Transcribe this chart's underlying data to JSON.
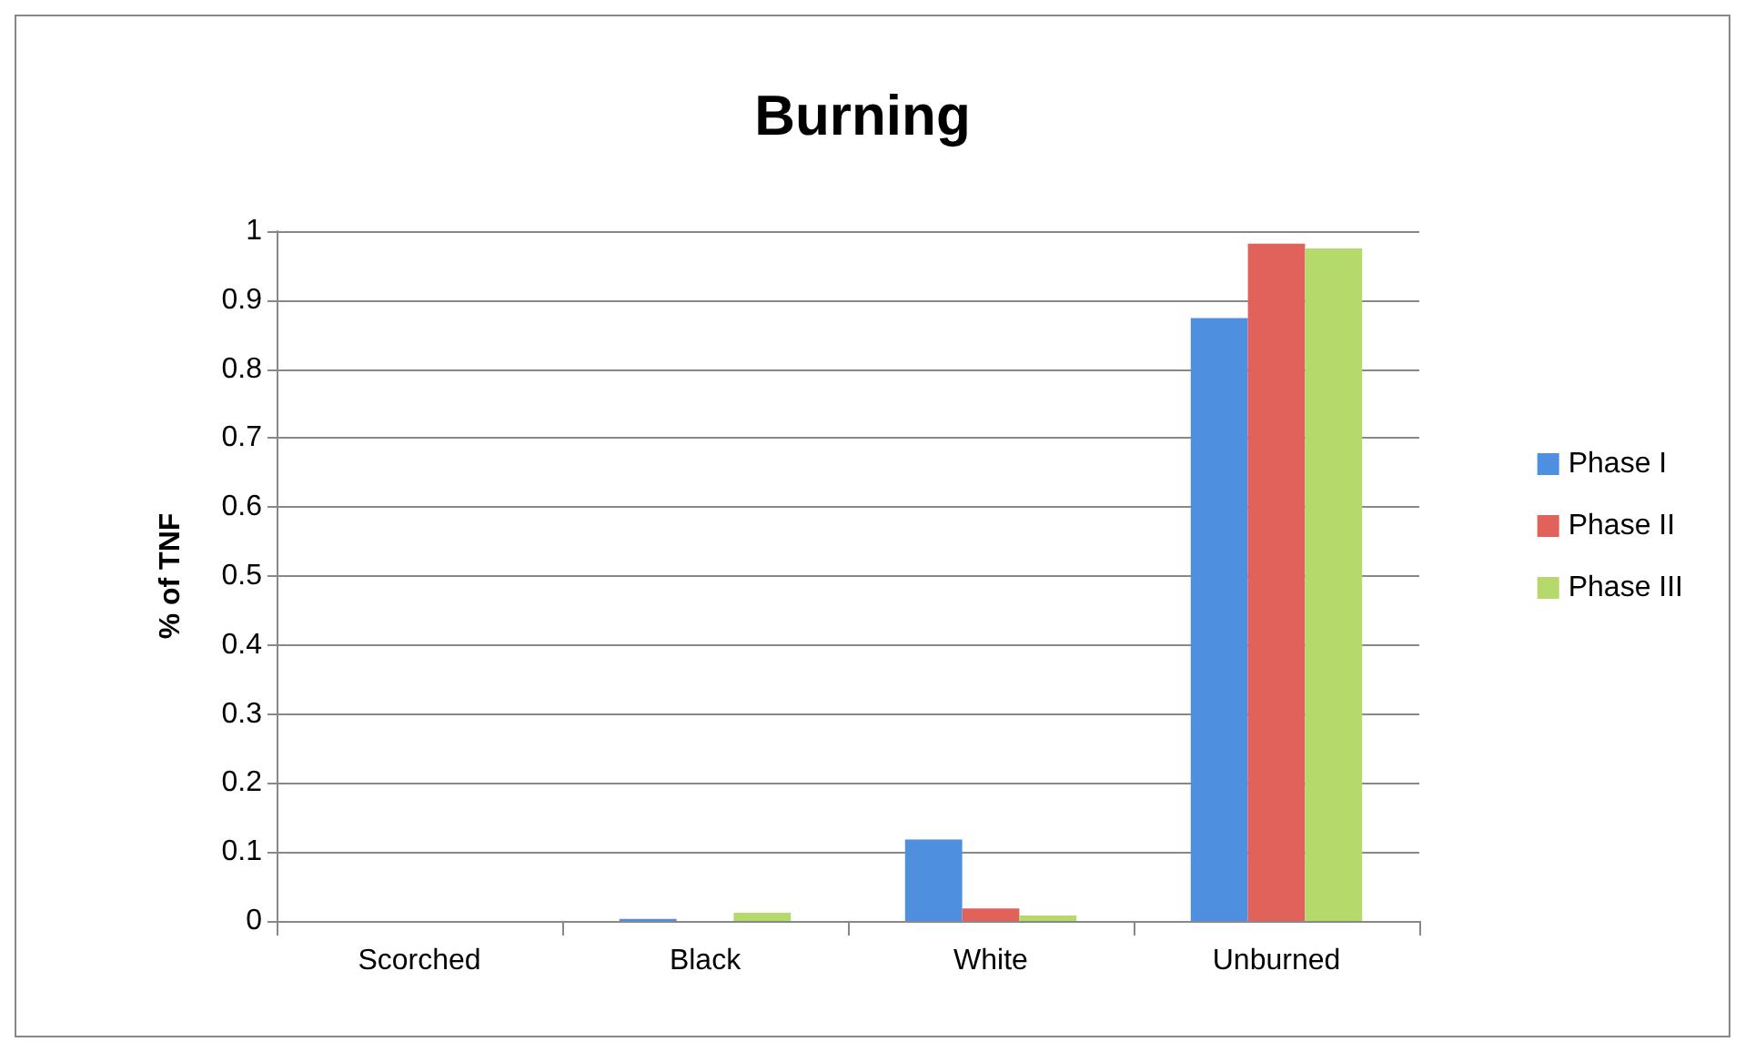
{
  "chart_data": {
    "type": "bar",
    "title": "Burning",
    "ylabel": "% of TNF",
    "categories": [
      "Scorched",
      "Black",
      "White",
      "Unburned"
    ],
    "series": [
      {
        "name": "Phase I",
        "color": "#4f8fe0",
        "values": [
          0,
          0.003,
          0.118,
          0.874
        ]
      },
      {
        "name": "Phase II",
        "color": "#e0625a",
        "values": [
          0,
          0,
          0.018,
          0.982
        ]
      },
      {
        "name": "Phase III",
        "color": "#b5d96a",
        "values": [
          0,
          0.012,
          0.008,
          0.975
        ]
      }
    ],
    "ylim": [
      0,
      1
    ],
    "yticks": [
      0,
      0.1,
      0.2,
      0.3,
      0.4,
      0.5,
      0.6,
      0.7,
      0.8,
      0.9,
      1
    ],
    "grid": "y",
    "legend": "right"
  }
}
